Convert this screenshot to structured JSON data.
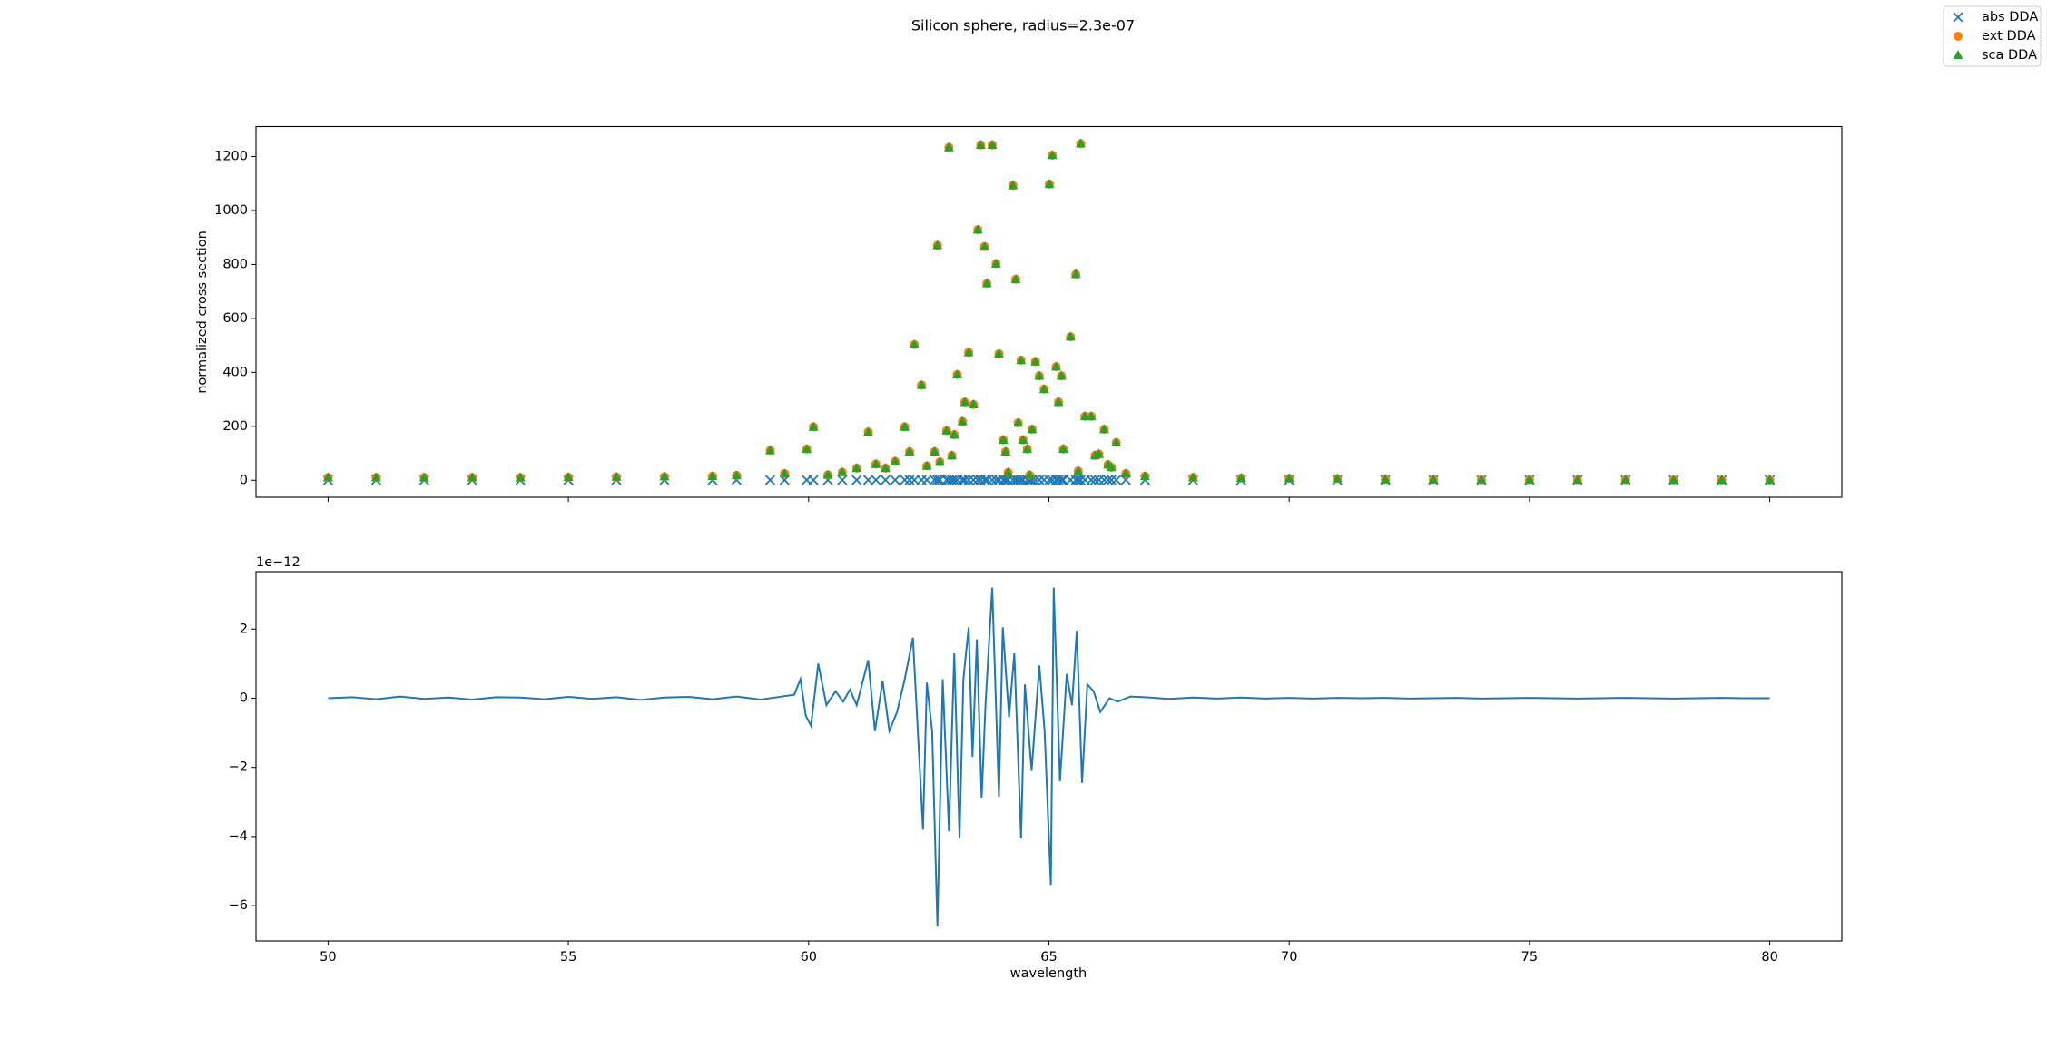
{
  "chart_data": [
    {
      "type": "scatter",
      "title": "Silicon sphere, radius=2.3e-07",
      "ylabel": "normalized cross section",
      "xlim": [
        48.5,
        81.5
      ],
      "xticks": [
        50,
        55,
        60,
        65,
        70,
        75,
        80
      ],
      "ylim": [
        -63,
        1311
      ],
      "yticks": [
        0,
        200,
        400,
        600,
        800,
        1000,
        1200
      ],
      "legend": "upper right",
      "x": [
        50,
        51,
        52,
        53,
        54,
        55,
        56,
        57,
        58,
        58.5,
        59.2,
        59.5,
        59.96,
        60.1,
        60.4,
        60.7,
        61.0,
        61.24,
        61.4,
        61.6,
        61.8,
        62.0,
        62.1,
        62.2,
        62.35,
        62.46,
        62.62,
        62.68,
        62.73,
        62.87,
        62.92,
        62.98,
        63.03,
        63.09,
        63.2,
        63.25,
        63.33,
        63.43,
        63.52,
        63.58,
        63.66,
        63.71,
        63.82,
        63.9,
        63.96,
        64.05,
        64.1,
        64.15,
        64.25,
        64.31,
        64.36,
        64.42,
        64.46,
        64.55,
        64.6,
        64.65,
        64.72,
        64.8,
        64.9,
        65.01,
        65.07,
        65.15,
        65.2,
        65.26,
        65.3,
        65.45,
        65.56,
        65.61,
        65.66,
        65.75,
        65.88,
        65.96,
        66.04,
        66.15,
        66.23,
        66.3,
        66.4,
        66.6,
        67,
        68,
        69,
        70,
        71,
        72,
        73,
        74,
        75,
        76,
        77,
        78,
        79,
        80
      ],
      "series": [
        {
          "name": "abs DDA",
          "color": "#1f77b4",
          "marker": "x",
          "values": [
            0.5,
            0.5,
            0.5,
            0.5,
            0.5,
            0.5,
            0.5,
            0.5,
            0.5,
            1,
            1,
            1,
            1,
            1,
            1,
            1,
            1,
            1,
            1,
            1,
            1,
            1,
            1,
            1,
            1,
            1,
            1,
            1,
            1,
            1,
            1,
            1,
            1,
            1,
            1,
            1,
            1,
            1,
            1,
            1,
            1,
            1,
            1,
            1,
            1,
            1,
            1,
            1,
            1,
            1,
            1,
            1,
            1,
            1,
            1,
            1,
            1,
            1,
            1,
            1,
            1,
            1,
            1,
            1,
            1,
            1,
            1,
            1,
            1,
            1,
            1,
            1,
            1,
            1,
            1,
            1,
            1,
            1,
            1,
            0.5,
            0.5,
            0.5,
            0.5,
            0.5,
            0.5,
            0.5,
            0.5,
            0.5,
            0.5,
            0.5,
            0.5,
            0.5
          ]
        },
        {
          "name": "ext DDA",
          "color": "#ff7f0e",
          "marker": "o",
          "values": [
            10,
            10,
            10,
            10,
            10,
            11,
            12,
            13,
            15,
            18,
            111,
            25,
            116,
            198,
            20,
            30,
            45,
            179,
            60,
            45,
            70,
            198,
            106,
            503,
            353,
            53,
            106,
            871,
            68,
            184,
            1234,
            92,
            169,
            392,
            218,
            290,
            474,
            281,
            929,
            1243,
            866,
            730,
            1243,
            803,
            469,
            150,
            106,
            29,
            1093,
            745,
            213,
            445,
            150,
            116,
            19,
            189,
            440,
            387,
            338,
            1098,
            1205,
            421,
            290,
            387,
            116,
            532,
            764,
            34,
            1248,
            237,
            237,
            92,
            97,
            189,
            58,
            48,
            140,
            25,
            15,
            10,
            8,
            7,
            6,
            3,
            3,
            2,
            2,
            2,
            2,
            1,
            1,
            1
          ]
        },
        {
          "name": "sca DDA",
          "color": "#2ca02c",
          "marker": "^",
          "values": [
            9.5,
            9.5,
            9.5,
            9.5,
            9.5,
            10.5,
            11.5,
            12.5,
            14.5,
            17,
            110,
            24,
            115,
            197,
            19,
            29,
            44,
            178,
            59,
            44,
            69,
            197,
            105,
            502,
            352,
            52,
            105,
            870,
            67,
            183,
            1233,
            91,
            168,
            391,
            217,
            289,
            473,
            280,
            928,
            1242,
            865,
            729,
            1242,
            802,
            468,
            149,
            105,
            28,
            1092,
            744,
            212,
            444,
            149,
            115,
            18,
            188,
            439,
            386,
            337,
            1097,
            1204,
            420,
            289,
            386,
            115,
            531,
            763,
            33,
            1247,
            236,
            236,
            91,
            96,
            188,
            57,
            47,
            139,
            24,
            14,
            9.5,
            7.5,
            6.5,
            5.5,
            2.5,
            2.5,
            1.5,
            1.5,
            1.5,
            1.5,
            0.5,
            0.5,
            0.5
          ]
        }
      ]
    },
    {
      "type": "line",
      "xlabel": "wavelength",
      "y_offset_label": "1e−12",
      "color": "#1f77b4",
      "xlim": [
        48.5,
        81.5
      ],
      "xticks": [
        50,
        55,
        60,
        65,
        70,
        75,
        80
      ],
      "ylim": [
        -7.02,
        3.66
      ],
      "yticks": [
        {
          "value": -6,
          "label": "−6"
        },
        {
          "value": -4,
          "label": "−4"
        },
        {
          "value": -2,
          "label": "−2"
        },
        0,
        2
      ],
      "x": [
        50,
        50.5,
        51,
        51.5,
        52,
        52.5,
        53,
        53.5,
        54,
        54.5,
        55,
        55.5,
        56,
        56.5,
        57,
        57.5,
        58,
        58.5,
        59,
        59.5,
        59.7,
        59.83,
        59.94,
        60.05,
        60.2,
        60.37,
        60.56,
        60.72,
        60.86,
        61.0,
        61.24,
        61.38,
        61.54,
        61.68,
        61.84,
        62.0,
        62.17,
        62.38,
        62.46,
        62.57,
        62.68,
        62.79,
        62.92,
        63.03,
        63.14,
        63.22,
        63.33,
        63.41,
        63.5,
        63.6,
        63.68,
        63.82,
        63.96,
        64.04,
        64.17,
        64.28,
        64.42,
        64.5,
        64.64,
        64.8,
        64.91,
        65.04,
        65.1,
        65.23,
        65.37,
        65.48,
        65.58,
        65.69,
        65.8,
        65.93,
        66.07,
        66.26,
        66.43,
        66.7,
        67,
        67.5,
        68,
        68.5,
        69,
        69.5,
        70,
        70.5,
        71,
        71.5,
        72,
        72.5,
        73,
        73.5,
        74,
        74.5,
        75,
        75.5,
        76,
        76.5,
        77,
        77.5,
        78,
        78.5,
        79,
        79.5,
        80
      ],
      "values": [
        0,
        0.03,
        -0.03,
        0.05,
        -0.02,
        0.02,
        -0.04,
        0.03,
        0.02,
        -0.03,
        0.04,
        -0.02,
        0.03,
        -0.05,
        0.02,
        0.04,
        -0.03,
        0.05,
        -0.04,
        0.06,
        0.1,
        0.55,
        -0.5,
        -0.8,
        1.0,
        -0.2,
        0.2,
        -0.1,
        0.25,
        -0.2,
        1.1,
        -0.95,
        0.5,
        -0.95,
        -0.4,
        0.55,
        1.75,
        -3.8,
        0.45,
        -0.95,
        -6.6,
        0.55,
        -3.85,
        1.3,
        -4.05,
        0.55,
        2.05,
        -1.7,
        1.7,
        -2.9,
        -0.2,
        3.2,
        -2.85,
        2.05,
        -0.55,
        1.3,
        -4.05,
        0.4,
        -2.1,
        0.95,
        -0.95,
        -5.4,
        3.2,
        -2.4,
        0.7,
        -0.2,
        1.95,
        -2.45,
        0.4,
        0.2,
        -0.4,
        0,
        -0.1,
        0.05,
        0.03,
        -0.02,
        0.02,
        -0.01,
        0.02,
        -0.01,
        0.01,
        -0.01,
        0.01,
        0,
        0.01,
        -0.01,
        0,
        0.01,
        -0.01,
        0,
        0.01,
        0,
        -0.01,
        0,
        0.01,
        0,
        -0.01,
        0,
        0.01,
        0,
        0
      ]
    }
  ]
}
